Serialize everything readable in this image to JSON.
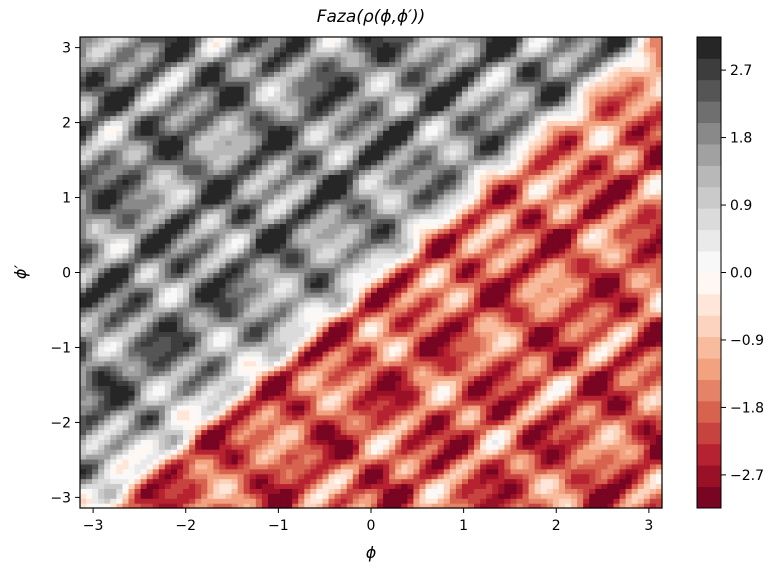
{
  "chart_data": {
    "type": "heatmap",
    "title": "Faza(ρ(ϕ,ϕ′))",
    "xlabel": "ϕ",
    "ylabel": "ϕ′",
    "xlim": [
      -3.14159,
      3.14159
    ],
    "ylim": [
      -3.14159,
      3.14159
    ],
    "x_ticks": [
      -3,
      -2,
      -1,
      0,
      1,
      2,
      3
    ],
    "x_tick_labels": [
      "−3",
      "−2",
      "−1",
      "0",
      "1",
      "2",
      "3"
    ],
    "y_ticks": [
      -3,
      -2,
      -1,
      0,
      1,
      2,
      3
    ],
    "y_tick_labels": [
      "−3",
      "−2",
      "−1",
      "0",
      "1",
      "2",
      "3"
    ],
    "colormap": "RdGy",
    "colorbar": {
      "min": -3.14159,
      "max": 3.14159,
      "levels": 22,
      "ticks": [
        2.7,
        1.8,
        0.9,
        0.0,
        -0.9,
        -1.8,
        -2.7
      ],
      "tick_labels": [
        "2.7",
        "1.8",
        "0.9",
        "0.0",
        "−0.9",
        "−1.8",
        "−2.7"
      ]
    },
    "grid": false,
    "description": "Phase field of rho(phi, phi'); antisymmetric about the diagonal, mostly grey/dark above and red below the diagonal, with a checkered banded pattern."
  }
}
